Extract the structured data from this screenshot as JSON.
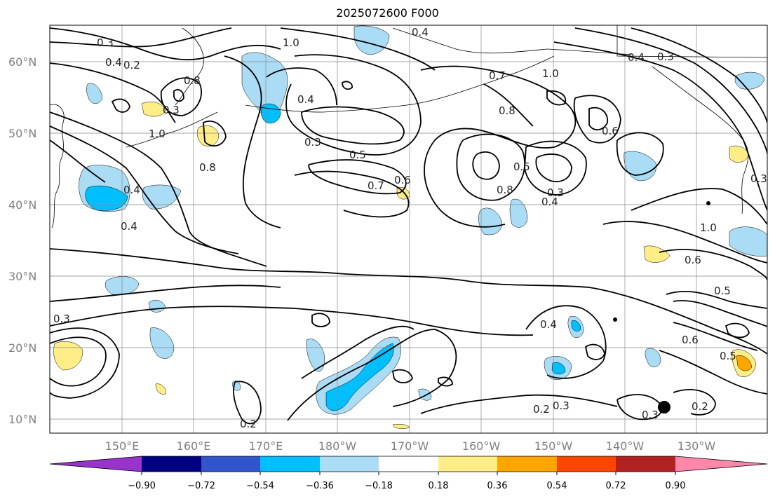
{
  "title": "2025072600 F000",
  "lat_labels": [
    "60°N",
    "50°N",
    "40°N",
    "30°N",
    "20°N",
    "10°N"
  ],
  "lon_labels": [
    "150°E",
    "160°E",
    "170°E",
    "180°W",
    "170°W",
    "160°W",
    "150°W",
    "140°W",
    "130°W"
  ],
  "colorbar": {
    "ticks": [
      "−0.90",
      "−0.72",
      "−0.54",
      "−0.36",
      "−0.18",
      "0.18",
      "0.36",
      "0.54",
      "0.72",
      "0.90"
    ],
    "colors": [
      "#9933cc",
      "#000080",
      "#3355cc",
      "#00bfff",
      "#aadcf5",
      "#ffffff",
      "#ffee88",
      "#ffa500",
      "#ff4500",
      "#b22222",
      "#ff88aa"
    ]
  },
  "contour_labels": [
    "0.3",
    "0.4",
    "0.2",
    "1.0",
    "0.4",
    "0.3",
    "0.3",
    "0.4",
    "0.8",
    "0.7",
    "1.0",
    "0.4",
    "0.3",
    "0.5",
    "0.7",
    "0.6",
    "0.8",
    "0.6",
    "1.0",
    "0.8",
    "0.4",
    "0.4",
    "0.5",
    "0.8",
    "0.3",
    "0.4",
    "0.3",
    "1.0",
    "0.6",
    "0.5",
    "0.3",
    "0.4",
    "0.6",
    "0.5",
    "0.2",
    "0.3",
    "0.3",
    "0.2",
    "0.2"
  ],
  "colors": {
    "frame": "#000000",
    "grid": "#888888",
    "contour": "#000000",
    "label": "#808080"
  }
}
